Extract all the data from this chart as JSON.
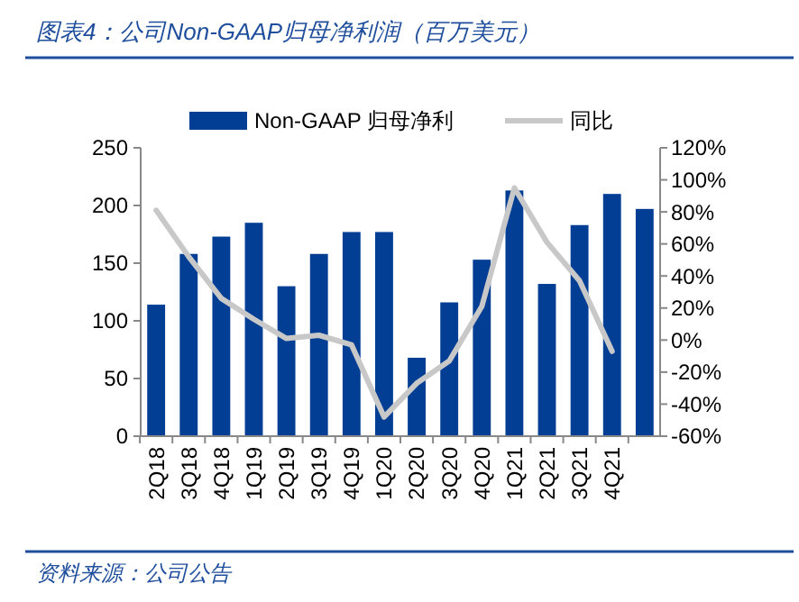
{
  "chart_data": {
    "type": "bar",
    "title": "图表4：公司Non-GAAP归母净利润（百万美元）",
    "annotations": [
      "资料来源：公司公告"
    ],
    "categories": [
      "2Q18",
      "3Q18",
      "4Q18",
      "1Q19",
      "2Q19",
      "3Q19",
      "4Q19",
      "1Q20",
      "2Q20",
      "3Q20",
      "4Q20",
      "1Q21",
      "2Q21",
      "3Q21",
      "4Q21",
      null
    ],
    "series": [
      {
        "name": "Non-GAAP 归母净利",
        "color": "#023e94",
        "values": [
          114,
          158,
          173,
          185,
          130,
          158,
          177,
          177,
          68,
          116,
          153,
          213,
          132,
          183,
          210,
          197
        ]
      },
      {
        "name": "同比",
        "type": "line",
        "axis": "y2",
        "color": "#c8c8c8",
        "values": [
          81,
          52,
          26,
          13,
          1,
          3,
          -3,
          -48,
          -27,
          -13,
          21,
          95,
          61,
          37,
          -7,
          null
        ]
      }
    ],
    "ylim": [
      0,
      250
    ],
    "yticks": [
      0,
      50,
      100,
      150,
      200,
      250
    ],
    "y2lim": [
      -60,
      120
    ],
    "y2ticks": [
      {
        "value": -60,
        "label": "-60%"
      },
      {
        "value": -40,
        "label": "-40%"
      },
      {
        "value": -20,
        "label": "-20%"
      },
      {
        "value": 0,
        "label": "0%"
      },
      {
        "value": 20,
        "label": "20%"
      },
      {
        "value": 40,
        "label": "40%"
      },
      {
        "value": 60,
        "label": "60%"
      },
      {
        "value": 80,
        "label": "80%"
      },
      {
        "value": 100,
        "label": "100%"
      },
      {
        "value": 120,
        "label": "120%"
      }
    ],
    "legend": "top",
    "grid": false
  }
}
